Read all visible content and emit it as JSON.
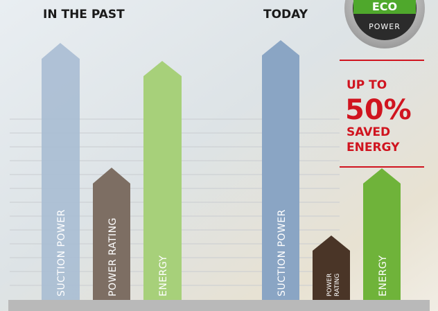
{
  "header": {
    "past_title": "IN THE PAST",
    "today_title": "TODAY"
  },
  "past": {
    "arrows": [
      [
        "SUCTION POWER"
      ],
      [
        "POWER RATING"
      ],
      [
        "ENERGY"
      ]
    ]
  },
  "today": {
    "arrows": [
      [
        "SUCTION POWER"
      ],
      [
        "POWER",
        "RATING"
      ],
      [
        "ENERGY"
      ]
    ]
  },
  "badge": {
    "line1": "ECO",
    "line2": "POWER"
  },
  "callout": {
    "lines": [
      "UP TO",
      "50%",
      "SAVED",
      "ENERGY"
    ]
  }
}
